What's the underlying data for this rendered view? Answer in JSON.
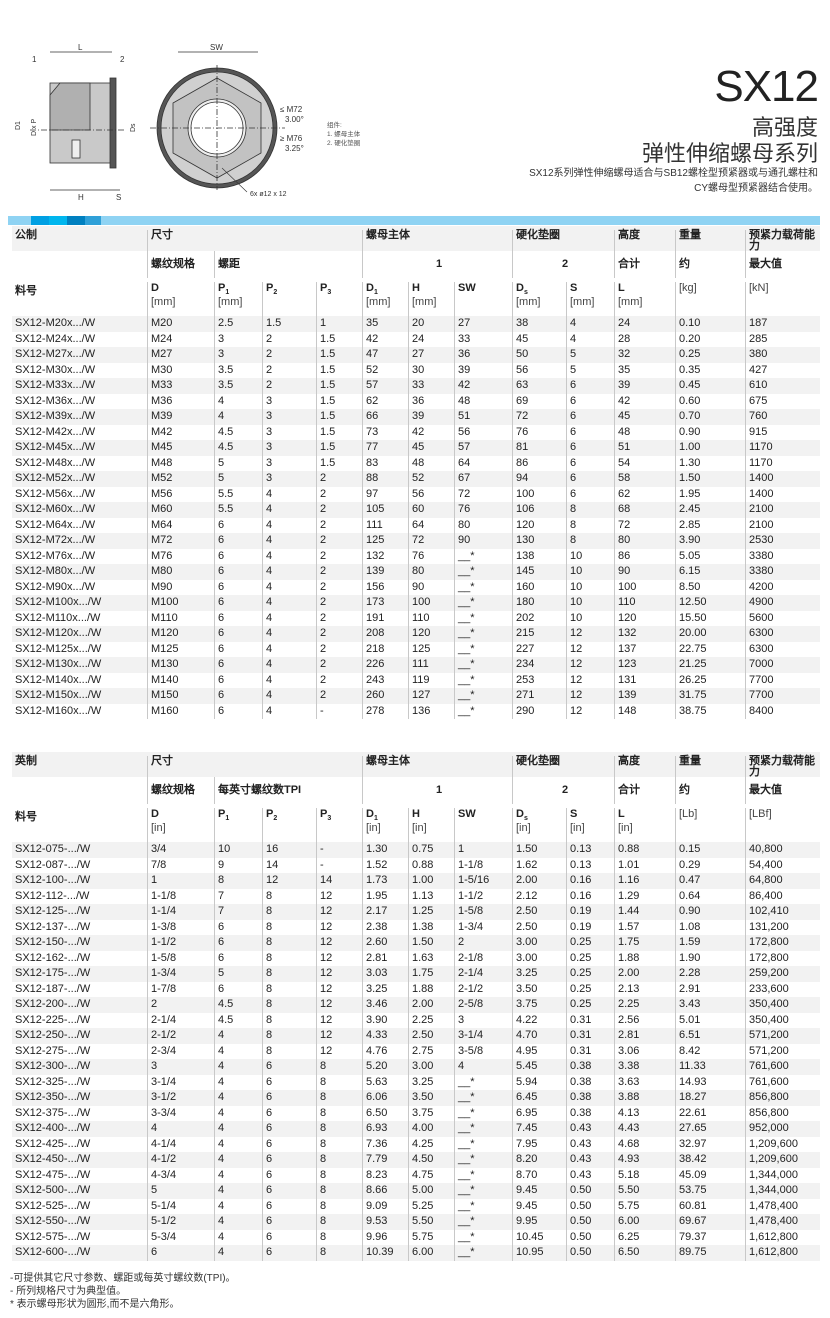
{
  "drawing": {
    "label_L": "L",
    "label_SW": "SW",
    "label_1": "1",
    "label_2": "2",
    "label_D1": "D1",
    "label_DxP": "D x P",
    "label_Ds": "Ds",
    "label_H": "H",
    "label_S": "S",
    "angle_small": "≤ M72",
    "angle_small_val": "3.00°",
    "angle_large": "≥ M76",
    "angle_large_val": "3.25°",
    "holes": "6x  ø12 x 12"
  },
  "legend": {
    "title": "组件:",
    "items": [
      "1. 螺母主体",
      "2. 硬化垫圈"
    ]
  },
  "header": {
    "title": "SX12",
    "subtitle1": "高强度",
    "subtitle2": "弹性伸缩螺母系列",
    "description1": "SX12系列弹性伸缩螺母适合与SB12螺栓型预紧器或与通孔螺柱和",
    "description2": "CY螺母型预紧器结合使用。"
  },
  "colors": {
    "stripe": "#8fd3f3",
    "stripe_segments": [
      "#00a0e3",
      "#00b6ee",
      "#0080c0",
      "#2fa0d8"
    ],
    "row_alt": "#f2f2f2"
  },
  "metric": {
    "group_row": [
      "公制",
      "尺寸",
      "螺母主体",
      "硬化垫圈",
      "高度",
      "重量",
      "预紧力载荷能力"
    ],
    "sub_row": {
      "thread": "螺纹规格",
      "pitch": "螺距",
      "nut": "1",
      "washer": "2",
      "height": "合计",
      "weight": "约",
      "load": "最大值"
    },
    "part_label": "料号",
    "columns": [
      {
        "sym": "D",
        "sub": "",
        "unit": "[mm]"
      },
      {
        "sym": "P",
        "sub": "1",
        "unit": "[mm]"
      },
      {
        "sym": "P",
        "sub": "2",
        "unit": ""
      },
      {
        "sym": "P",
        "sub": "3",
        "unit": ""
      },
      {
        "sym": "D",
        "sub": "1",
        "unit": "[mm]"
      },
      {
        "sym": "H",
        "sub": "",
        "unit": "[mm]"
      },
      {
        "sym": "SW",
        "sub": "",
        "unit": ""
      },
      {
        "sym": "D",
        "sub": "s",
        "unit": "[mm]"
      },
      {
        "sym": "S",
        "sub": "",
        "unit": "[mm]"
      },
      {
        "sym": "L",
        "sub": "",
        "unit": "[mm]"
      },
      {
        "sym": "",
        "sub": "",
        "unit": "[kg]"
      },
      {
        "sym": "",
        "sub": "",
        "unit": "[kN]"
      }
    ],
    "rows": [
      [
        "SX12-M20x.../W",
        "M20",
        "2.5",
        "1.5",
        "1",
        "35",
        "20",
        "27",
        "38",
        "4",
        "24",
        "0.10",
        "187"
      ],
      [
        "SX12-M24x.../W",
        "M24",
        "3",
        "2",
        "1.5",
        "42",
        "24",
        "33",
        "45",
        "4",
        "28",
        "0.20",
        "285"
      ],
      [
        "SX12-M27x.../W",
        "M27",
        "3",
        "2",
        "1.5",
        "47",
        "27",
        "36",
        "50",
        "5",
        "32",
        "0.25",
        "380"
      ],
      [
        "SX12-M30x.../W",
        "M30",
        "3.5",
        "2",
        "1.5",
        "52",
        "30",
        "39",
        "56",
        "5",
        "35",
        "0.35",
        "427"
      ],
      [
        "SX12-M33x.../W",
        "M33",
        "3.5",
        "2",
        "1.5",
        "57",
        "33",
        "42",
        "63",
        "6",
        "39",
        "0.45",
        "610"
      ],
      [
        "SX12-M36x.../W",
        "M36",
        "4",
        "3",
        "1.5",
        "62",
        "36",
        "48",
        "69",
        "6",
        "42",
        "0.60",
        "675"
      ],
      [
        "SX12-M39x.../W",
        "M39",
        "4",
        "3",
        "1.5",
        "66",
        "39",
        "51",
        "72",
        "6",
        "45",
        "0.70",
        "760"
      ],
      [
        "SX12-M42x.../W",
        "M42",
        "4.5",
        "3",
        "1.5",
        "73",
        "42",
        "56",
        "76",
        "6",
        "48",
        "0.90",
        "915"
      ],
      [
        "SX12-M45x.../W",
        "M45",
        "4.5",
        "3",
        "1.5",
        "77",
        "45",
        "57",
        "81",
        "6",
        "51",
        "1.00",
        "1170"
      ],
      [
        "SX12-M48x.../W",
        "M48",
        "5",
        "3",
        "1.5",
        "83",
        "48",
        "64",
        "86",
        "6",
        "54",
        "1.30",
        "1170"
      ],
      [
        "SX12-M52x.../W",
        "M52",
        "5",
        "3",
        "2",
        "88",
        "52",
        "67",
        "94",
        "6",
        "58",
        "1.50",
        "1400"
      ],
      [
        "SX12-M56x.../W",
        "M56",
        "5.5",
        "4",
        "2",
        "97",
        "56",
        "72",
        "100",
        "6",
        "62",
        "1.95",
        "1400"
      ],
      [
        "SX12-M60x.../W",
        "M60",
        "5.5",
        "4",
        "2",
        "105",
        "60",
        "76",
        "106",
        "8",
        "68",
        "2.45",
        "2100"
      ],
      [
        "SX12-M64x.../W",
        "M64",
        "6",
        "4",
        "2",
        "111",
        "64",
        "80",
        "120",
        "8",
        "72",
        "2.85",
        "2100"
      ],
      [
        "SX12-M72x.../W",
        "M72",
        "6",
        "4",
        "2",
        "125",
        "72",
        "90",
        "130",
        "8",
        "80",
        "3.90",
        "2530"
      ],
      [
        "SX12-M76x.../W",
        "M76",
        "6",
        "4",
        "2",
        "132",
        "76",
        "__*",
        "138",
        "10",
        "86",
        "5.05",
        "3380"
      ],
      [
        "SX12-M80x.../W",
        "M80",
        "6",
        "4",
        "2",
        "139",
        "80",
        "__*",
        "145",
        "10",
        "90",
        "6.15",
        "3380"
      ],
      [
        "SX12-M90x.../W",
        "M90",
        "6",
        "4",
        "2",
        "156",
        "90",
        "__*",
        "160",
        "10",
        "100",
        "8.50",
        "4200"
      ],
      [
        "SX12-M100x.../W",
        "M100",
        "6",
        "4",
        "2",
        "173",
        "100",
        "__*",
        "180",
        "10",
        "110",
        "12.50",
        "4900"
      ],
      [
        "SX12-M110x.../W",
        "M110",
        "6",
        "4",
        "2",
        "191",
        "110",
        "__*",
        "202",
        "10",
        "120",
        "15.50",
        "5600"
      ],
      [
        "SX12-M120x.../W",
        "M120",
        "6",
        "4",
        "2",
        "208",
        "120",
        "__*",
        "215",
        "12",
        "132",
        "20.00",
        "6300"
      ],
      [
        "SX12-M125x.../W",
        "M125",
        "6",
        "4",
        "2",
        "218",
        "125",
        "__*",
        "227",
        "12",
        "137",
        "22.75",
        "6300"
      ],
      [
        "SX12-M130x.../W",
        "M130",
        "6",
        "4",
        "2",
        "226",
        "111",
        "__*",
        "234",
        "12",
        "123",
        "21.25",
        "7000"
      ],
      [
        "SX12-M140x.../W",
        "M140",
        "6",
        "4",
        "2",
        "243",
        "119",
        "__*",
        "253",
        "12",
        "131",
        "26.25",
        "7700"
      ],
      [
        "SX12-M150x.../W",
        "M150",
        "6",
        "4",
        "2",
        "260",
        "127",
        "__*",
        "271",
        "12",
        "139",
        "31.75",
        "7700"
      ],
      [
        "SX12-M160x.../W",
        "M160",
        "6",
        "4",
        "-",
        "278",
        "136",
        "__*",
        "290",
        "12",
        "148",
        "38.75",
        "8400"
      ]
    ]
  },
  "imperial": {
    "group_row": [
      "英制",
      "尺寸",
      "螺母主体",
      "硬化垫圈",
      "高度",
      "重量",
      "预紧力载荷能力"
    ],
    "sub_row": {
      "thread": "螺纹规格",
      "pitch": "每英寸螺纹数TPI",
      "nut": "1",
      "washer": "2",
      "height": "合计",
      "weight": "约",
      "load": "最大值"
    },
    "part_label": "料号",
    "columns": [
      {
        "sym": "D",
        "sub": "",
        "unit": "[in]"
      },
      {
        "sym": "P",
        "sub": "1",
        "unit": ""
      },
      {
        "sym": "P",
        "sub": "2",
        "unit": ""
      },
      {
        "sym": "P",
        "sub": "3",
        "unit": ""
      },
      {
        "sym": "D",
        "sub": "1",
        "unit": "[in]"
      },
      {
        "sym": "H",
        "sub": "",
        "unit": "[in]"
      },
      {
        "sym": "SW",
        "sub": "",
        "unit": ""
      },
      {
        "sym": "D",
        "sub": "s",
        "unit": "[in]"
      },
      {
        "sym": "S",
        "sub": "",
        "unit": "[in]"
      },
      {
        "sym": "L",
        "sub": "",
        "unit": "[in]"
      },
      {
        "sym": "",
        "sub": "",
        "unit": "[Lb]"
      },
      {
        "sym": "",
        "sub": "",
        "unit": "[LBf]"
      }
    ],
    "rows": [
      [
        "SX12-075-.../W",
        "3/4",
        "10",
        "16",
        "-",
        "1.30",
        "0.75",
        "1",
        "1.50",
        "0.13",
        "0.88",
        "0.15",
        "40,800"
      ],
      [
        "SX12-087-.../W",
        "7/8",
        "9",
        "14",
        "-",
        "1.52",
        "0.88",
        "1-1/8",
        "1.62",
        "0.13",
        "1.01",
        "0.29",
        "54,400"
      ],
      [
        "SX12-100-.../W",
        "1",
        "8",
        "12",
        "14",
        "1.73",
        "1.00",
        "1-5/16",
        "2.00",
        "0.16",
        "1.16",
        "0.47",
        "64,800"
      ],
      [
        "SX12-112-.../W",
        "1-1/8",
        "7",
        "8",
        "12",
        "1.95",
        "1.13",
        "1-1/2",
        "2.12",
        "0.16",
        "1.29",
        "0.64",
        "86,400"
      ],
      [
        "SX12-125-.../W",
        "1-1/4",
        "7",
        "8",
        "12",
        "2.17",
        "1.25",
        "1-5/8",
        "2.50",
        "0.19",
        "1.44",
        "0.90",
        "102,410"
      ],
      [
        "SX12-137-.../W",
        "1-3/8",
        "6",
        "8",
        "12",
        "2.38",
        "1.38",
        "1-3/4",
        "2.50",
        "0.19",
        "1.57",
        "1.08",
        "131,200"
      ],
      [
        "SX12-150-.../W",
        "1-1/2",
        "6",
        "8",
        "12",
        "2.60",
        "1.50",
        "2",
        "3.00",
        "0.25",
        "1.75",
        "1.59",
        "172,800"
      ],
      [
        "SX12-162-.../W",
        "1-5/8",
        "6",
        "8",
        "12",
        "2.81",
        "1.63",
        "2-1/8",
        "3.00",
        "0.25",
        "1.88",
        "1.90",
        "172,800"
      ],
      [
        "SX12-175-.../W",
        "1-3/4",
        "5",
        "8",
        "12",
        "3.03",
        "1.75",
        "2-1/4",
        "3.25",
        "0.25",
        "2.00",
        "2.28",
        "259,200"
      ],
      [
        "SX12-187-.../W",
        "1-7/8",
        "6",
        "8",
        "12",
        "3.25",
        "1.88",
        "2-1/2",
        "3.50",
        "0.25",
        "2.13",
        "2.91",
        "233,600"
      ],
      [
        "SX12-200-.../W",
        "2",
        "4.5",
        "8",
        "12",
        "3.46",
        "2.00",
        "2-5/8",
        "3.75",
        "0.25",
        "2.25",
        "3.43",
        "350,400"
      ],
      [
        "SX12-225-.../W",
        "2-1/4",
        "4.5",
        "8",
        "12",
        "3.90",
        "2.25",
        "3",
        "4.22",
        "0.31",
        "2.56",
        "5.01",
        "350,400"
      ],
      [
        "SX12-250-.../W",
        "2-1/2",
        "4",
        "8",
        "12",
        "4.33",
        "2.50",
        "3-1/4",
        "4.70",
        "0.31",
        "2.81",
        "6.51",
        "571,200"
      ],
      [
        "SX12-275-.../W",
        "2-3/4",
        "4",
        "8",
        "12",
        "4.76",
        "2.75",
        "3-5/8",
        "4.95",
        "0.31",
        "3.06",
        "8.42",
        "571,200"
      ],
      [
        "SX12-300-.../W",
        "3",
        "4",
        "6",
        "8",
        "5.20",
        "3.00",
        "4",
        "5.45",
        "0.38",
        "3.38",
        "11.33",
        "761,600"
      ],
      [
        "SX12-325-.../W",
        "3-1/4",
        "4",
        "6",
        "8",
        "5.63",
        "3.25",
        "__*",
        "5.94",
        "0.38",
        "3.63",
        "14.93",
        "761,600"
      ],
      [
        "SX12-350-.../W",
        "3-1/2",
        "4",
        "6",
        "8",
        "6.06",
        "3.50",
        "__*",
        "6.45",
        "0.38",
        "3.88",
        "18.27",
        "856,800"
      ],
      [
        "SX12-375-.../W",
        "3-3/4",
        "4",
        "6",
        "8",
        "6.50",
        "3.75",
        "__*",
        "6.95",
        "0.38",
        "4.13",
        "22.61",
        "856,800"
      ],
      [
        "SX12-400-.../W",
        "4",
        "4",
        "6",
        "8",
        "6.93",
        "4.00",
        "__*",
        "7.45",
        "0.43",
        "4.43",
        "27.65",
        "952,000"
      ],
      [
        "SX12-425-.../W",
        "4-1/4",
        "4",
        "6",
        "8",
        "7.36",
        "4.25",
        "__*",
        "7.95",
        "0.43",
        "4.68",
        "32.97",
        "1,209,600"
      ],
      [
        "SX12-450-.../W",
        "4-1/2",
        "4",
        "6",
        "8",
        "7.79",
        "4.50",
        "__*",
        "8.20",
        "0.43",
        "4.93",
        "38.42",
        "1,209,600"
      ],
      [
        "SX12-475-.../W",
        "4-3/4",
        "4",
        "6",
        "8",
        "8.23",
        "4.75",
        "__*",
        "8.70",
        "0.43",
        "5.18",
        "45.09",
        "1,344,000"
      ],
      [
        "SX12-500-.../W",
        "5",
        "4",
        "6",
        "8",
        "8.66",
        "5.00",
        "__*",
        "9.45",
        "0.50",
        "5.50",
        "53.75",
        "1,344,000"
      ],
      [
        "SX12-525-.../W",
        "5-1/4",
        "4",
        "6",
        "8",
        "9.09",
        "5.25",
        "__*",
        "9.45",
        "0.50",
        "5.75",
        "60.81",
        "1,478,400"
      ],
      [
        "SX12-550-.../W",
        "5-1/2",
        "4",
        "6",
        "8",
        "9.53",
        "5.50",
        "__*",
        "9.95",
        "0.50",
        "6.00",
        "69.67",
        "1,478,400"
      ],
      [
        "SX12-575-.../W",
        "5-3/4",
        "4",
        "6",
        "8",
        "9.96",
        "5.75",
        "__*",
        "10.45",
        "0.50",
        "6.25",
        "79.37",
        "1,612,800"
      ],
      [
        "SX12-600-.../W",
        "6",
        "4",
        "6",
        "8",
        "10.39",
        "6.00",
        "__*",
        "10.95",
        "0.50",
        "6.50",
        "89.75",
        "1,612,800"
      ]
    ]
  },
  "notes": [
    "-可提供其它尺寸参数、螺距或每英寸螺纹数(TPI)。",
    "- 所列规格尺寸为典型值。",
    "* 表示螺母形状为圆形,而不是六角形。"
  ]
}
